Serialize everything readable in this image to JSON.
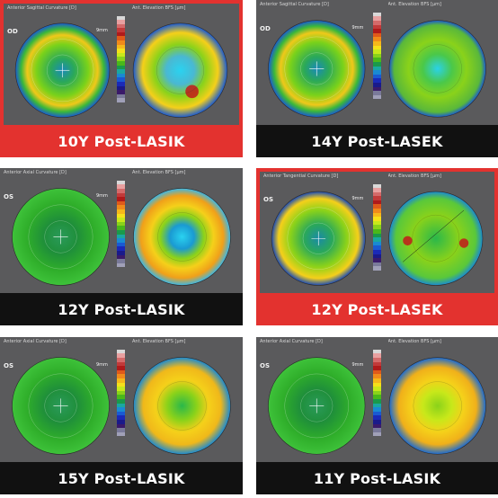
{
  "cards": [
    {
      "caption": "10Y Post-LASIK",
      "left_title": "Anterior Sagittal Curvature [D]",
      "right_title": "Ant. Elevation BFS [µm]",
      "eye": "OD",
      "mm": "9mm",
      "map_style": "sag_ring",
      "elev_style": "blue_center_redspot",
      "highlight": true
    },
    {
      "caption": "14Y Post-LASEK",
      "left_title": "Anterior Sagittal Curvature [D]",
      "right_title": "Ant. Elevation BFS [µm]",
      "eye": "OD",
      "mm": "9mm",
      "map_style": "sag_ring",
      "elev_style": "green_blue",
      "highlight": false
    },
    {
      "caption": "12Y Post-LASIK",
      "left_title": "Anterior Axial Curvature [D]",
      "right_title": "Ant. Elevation BFS [µm]",
      "eye": "OS",
      "mm": "9mm",
      "map_style": "axial_green",
      "elev_style": "ring_blue",
      "highlight": false
    },
    {
      "caption": "12Y Post-LASEK",
      "left_title": "Anterior Tangential Curvature [D]",
      "right_title": "Ant. Elevation BFS [µm]",
      "eye": "OS",
      "mm": "9mm",
      "map_style": "tang",
      "elev_style": "green_redspots",
      "highlight": true
    },
    {
      "caption": "15Y Post-LASIK",
      "left_title": "Anterior Axial Curvature [D]",
      "right_title": "Ant. Elevation BFS [µm]",
      "eye": "OS",
      "mm": "9mm",
      "map_style": "axial_green",
      "elev_style": "ring_green",
      "highlight": false
    },
    {
      "caption": "11Y Post-LASIK",
      "left_title": "Anterior Axial Curvature [D]",
      "right_title": "Ant. Elevation BFS [µm]",
      "eye": "OS",
      "mm": "9mm",
      "map_style": "axial_green",
      "elev_style": "ring_yellow",
      "highlight": false
    }
  ],
  "colors": {
    "highlight": "#e3322f",
    "caption_dark": "#111111",
    "panel": "#5a5a5c"
  },
  "scale_colors": [
    "#d8d8d8",
    "#e8a0a0",
    "#d46a6a",
    "#c23a3a",
    "#b01a1a",
    "#e05a1a",
    "#f08a1a",
    "#f5b81a",
    "#f5e01a",
    "#c8e81a",
    "#8ad21a",
    "#4ab81a",
    "#1a9a4a",
    "#1aa8a0",
    "#1a8ad2",
    "#1a5ad2",
    "#1a2ab8",
    "#1a1a8a",
    "#3a1a6a",
    "#7a7a9a",
    "#a0a0b8"
  ]
}
